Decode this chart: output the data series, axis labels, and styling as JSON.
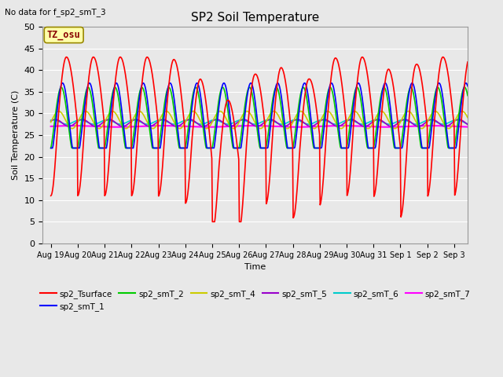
{
  "title": "SP2 Soil Temperature",
  "subtitle": "No data for f_sp2_smT_3",
  "ylabel": "Soil Temperature (C)",
  "xlabel": "Time",
  "tz_label": "TZ_osu",
  "ylim": [
    0,
    50
  ],
  "legend_entries": [
    {
      "label": "sp2_Tsurface",
      "color": "#ff0000"
    },
    {
      "label": "sp2_smT_1",
      "color": "#0000ff"
    },
    {
      "label": "sp2_smT_2",
      "color": "#00cc00"
    },
    {
      "label": "sp2_smT_4",
      "color": "#cccc00"
    },
    {
      "label": "sp2_smT_5",
      "color": "#9900cc"
    },
    {
      "label": "sp2_smT_6",
      "color": "#00cccc"
    },
    {
      "label": "sp2_smT_7",
      "color": "#ff00ff"
    }
  ],
  "bg_color": "#e8e8e8",
  "plot_bg": "#e8e8e8",
  "grid_color": "#ffffff",
  "tick_labels": [
    "Aug 19",
    "Aug 20",
    "Aug 21",
    "Aug 22",
    "Aug 23",
    "Aug 24",
    "Aug 25",
    "Aug 26",
    "Aug 27",
    "Aug 28",
    "Aug 29",
    "Aug 30",
    "Aug 31",
    "Sep 1",
    "Sep 2",
    "Sep 3"
  ]
}
